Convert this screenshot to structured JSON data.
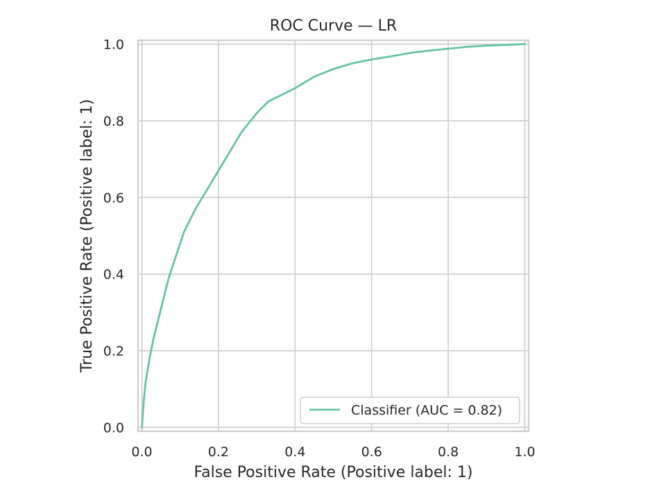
{
  "chart_data": {
    "type": "line",
    "title": "ROC Curve — LR",
    "xlabel": "False Positive Rate (Positive label: 1)",
    "ylabel": "True Positive Rate (Positive label: 1)",
    "xlim": [
      -0.01,
      1.01
    ],
    "ylim": [
      -0.01,
      1.01
    ],
    "xticks": [
      "0.0",
      "0.2",
      "0.4",
      "0.6",
      "0.8",
      "1.0"
    ],
    "yticks": [
      "0.0",
      "0.2",
      "0.4",
      "0.6",
      "0.8",
      "1.0"
    ],
    "grid": true,
    "legend_position": "lower-right",
    "series": [
      {
        "name": "Classifier (AUC = 0.82)",
        "color": "#66c2a5",
        "x": [
          0.0,
          0.005,
          0.01,
          0.02,
          0.03,
          0.05,
          0.07,
          0.09,
          0.11,
          0.14,
          0.17,
          0.2,
          0.23,
          0.26,
          0.3,
          0.33,
          0.37,
          0.4,
          0.45,
          0.5,
          0.55,
          0.6,
          0.65,
          0.7,
          0.75,
          0.8,
          0.85,
          0.9,
          0.95,
          1.0
        ],
        "y": [
          0.0,
          0.07,
          0.12,
          0.18,
          0.23,
          0.31,
          0.39,
          0.45,
          0.51,
          0.57,
          0.62,
          0.67,
          0.72,
          0.77,
          0.82,
          0.85,
          0.87,
          0.885,
          0.915,
          0.935,
          0.95,
          0.96,
          0.968,
          0.977,
          0.983,
          0.988,
          0.993,
          0.996,
          0.998,
          1.0
        ]
      }
    ],
    "legend": [
      "Classifier (AUC = 0.82)"
    ],
    "auc": 0.82
  }
}
